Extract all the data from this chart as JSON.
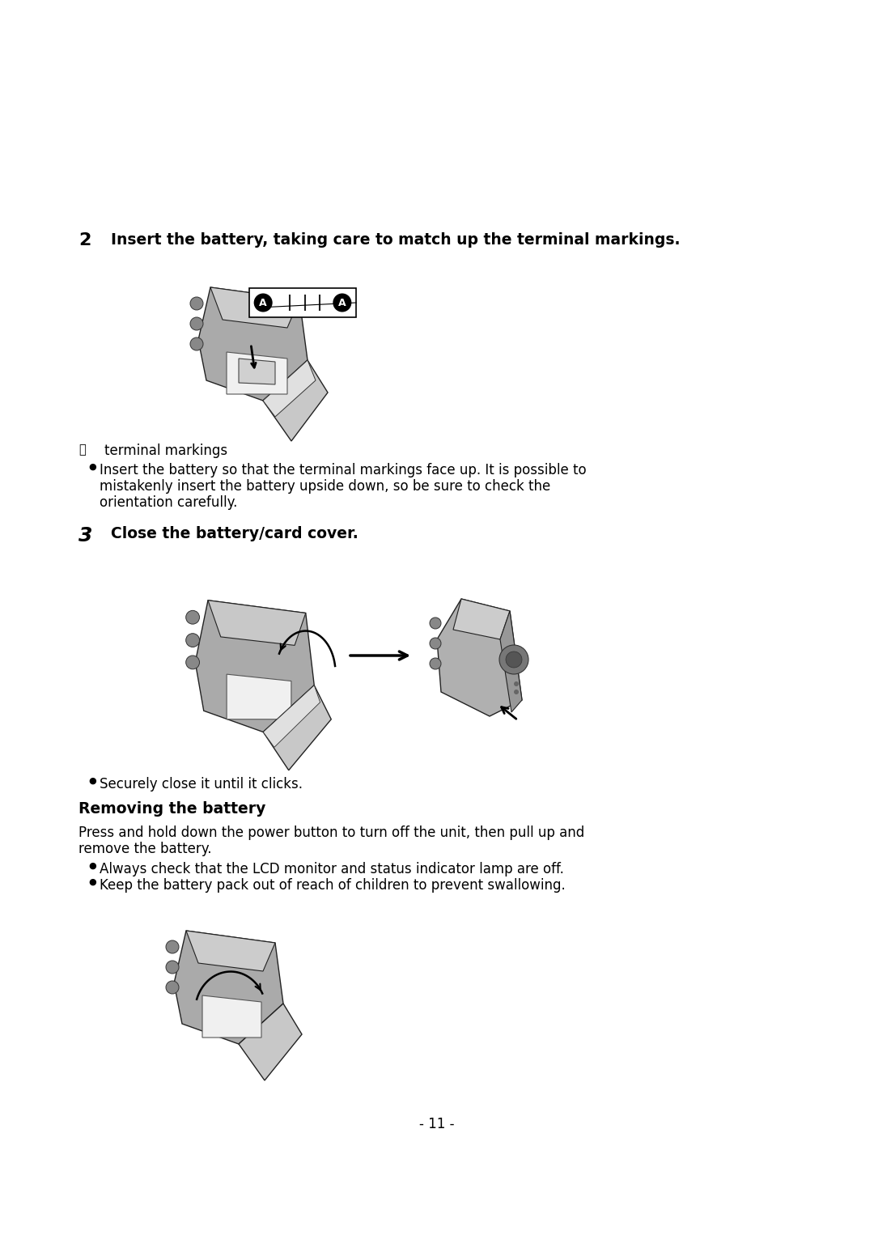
{
  "bg_color": "#ffffff",
  "text_color": "#000000",
  "page_number": "- 11 -",
  "step2_number": "2",
  "step2_text": "Insert the battery, taking care to match up the terminal markings.",
  "label_a_desc": "terminal markings",
  "bullet1_line1": "Insert the battery so that the terminal markings face up. It is possible to",
  "bullet1_line2": "mistakenly insert the battery upside down, so be sure to check the",
  "bullet1_line3": "orientation carefully.",
  "step3_number": "3",
  "step3_text": "Close the battery/card cover.",
  "bullet2": "Securely close it until it clicks.",
  "section_title": "Removing the battery",
  "section_body_line1": "Press and hold down the power button to turn off the unit, then pull up and",
  "section_body_line2": "remove the battery.",
  "bullet3": "Always check that the LCD monitor and status indicator lamp are off.",
  "bullet4": "Keep the battery pack out of reach of children to prevent swallowing.",
  "fig_width": 10.8,
  "fig_height": 15.26,
  "dpi": 100
}
